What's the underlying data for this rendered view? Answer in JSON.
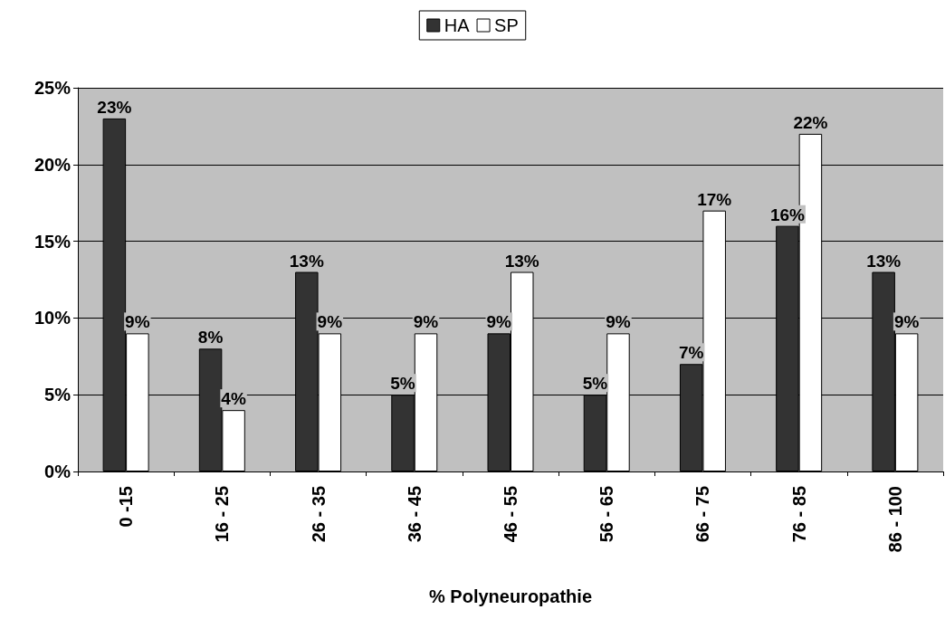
{
  "chart_data": {
    "type": "bar",
    "xlabel": "% Polyneuropathie",
    "categories": [
      "0 -15",
      "16 - 25",
      "26 - 35",
      "36 - 45",
      "46 - 55",
      "56 - 65",
      "66 - 75",
      "76 - 85",
      "86 - 100"
    ],
    "series": [
      {
        "name": "HA",
        "color": "#333333",
        "values": [
          23,
          8,
          13,
          5,
          9,
          5,
          7,
          16,
          13
        ],
        "value_labels": [
          "23%",
          "8%",
          "13%",
          "5%",
          "9%",
          "5%",
          "7%",
          "16%",
          "13%"
        ]
      },
      {
        "name": "SP",
        "color": "#ffffff",
        "values": [
          9,
          4,
          9,
          9,
          13,
          9,
          17,
          22,
          9
        ],
        "value_labels": [
          "9%",
          "4%",
          "9%",
          "9%",
          "13%",
          "9%",
          "17%",
          "22%",
          "9%"
        ]
      }
    ],
    "ylim": [
      0,
      25
    ],
    "yticks": [
      {
        "value": 0,
        "label": "0%"
      },
      {
        "value": 5,
        "label": "5%"
      },
      {
        "value": 10,
        "label": "10%"
      },
      {
        "value": 15,
        "label": "15%"
      },
      {
        "value": 20,
        "label": "20%"
      },
      {
        "value": 25,
        "label": "25%"
      }
    ],
    "grid": "y",
    "legend": "top"
  }
}
